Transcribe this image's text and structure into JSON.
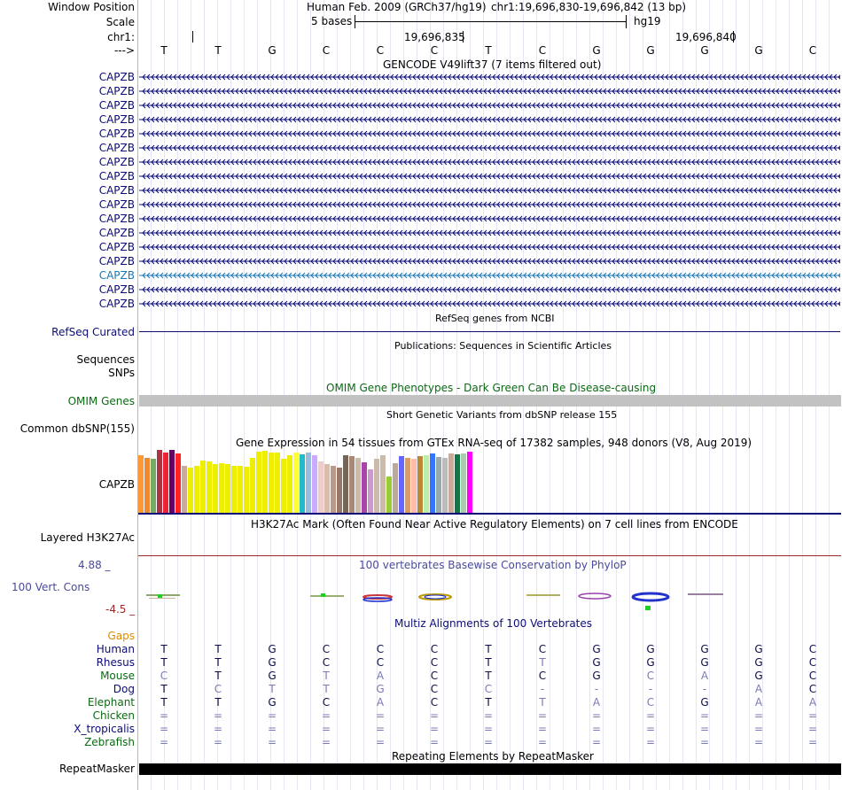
{
  "header": {
    "window_position_label": "Window Position",
    "assembly": "Human Feb. 2009 (GRCh37/hg19)",
    "position": "chr1:19,696,830-19,696,842 (13 bp)",
    "scale_label": "Scale",
    "scale_bar": "5 bases",
    "scale_db": "hg19",
    "chrom_label": "chr1:",
    "pos_tick_1": "19,696,835",
    "pos_tick_2": "19,696,840",
    "strand_label": "--->",
    "bases": [
      "T",
      "T",
      "G",
      "C",
      "C",
      "C",
      "T",
      "C",
      "G",
      "G",
      "G",
      "G",
      "C"
    ]
  },
  "gencode": {
    "title": "GENCODE V49lift37 (7 items filtered out)",
    "items": [
      "CAPZB",
      "CAPZB",
      "CAPZB",
      "CAPZB",
      "CAPZB",
      "CAPZB",
      "CAPZB",
      "CAPZB",
      "CAPZB",
      "CAPZB",
      "CAPZB",
      "CAPZB",
      "CAPZB",
      "CAPZB",
      "CAPZB",
      "CAPZB",
      "CAPZB"
    ],
    "colors": [
      "#0c0c78",
      "#0c0c78",
      "#0c0c78",
      "#0c0c78",
      "#0c0c78",
      "#0c0c78",
      "#0c0c78",
      "#0c0c78",
      "#0c0c78",
      "#0c0c78",
      "#0c0c78",
      "#0c0c78",
      "#0c0c78",
      "#0c0c78",
      "#1a78b4",
      "#0c0c78",
      "#0c0c78"
    ]
  },
  "refseq": {
    "title": "RefSeq genes from NCBI",
    "label": "RefSeq Curated",
    "color": "#0c0c78"
  },
  "publications": {
    "title": "Publications: Sequences in Scientific Articles",
    "label1": "Sequences",
    "label2": "SNPs"
  },
  "omim": {
    "title": "OMIM Gene Phenotypes - Dark Green Can Be Disease-causing",
    "label": "OMIM Genes",
    "color": "#0b6a12"
  },
  "dbsnp": {
    "title": "Short Genetic Variants from dbSNP release 155",
    "label": "Common dbSNP(155)"
  },
  "gtex": {
    "title": "Gene Expression in 54 tissues from GTEx RNA-seq of 17382 samples, 948 donors (V8, Aug 2019)",
    "label": "CAPZB",
    "values": [
      66,
      63,
      62,
      72,
      69,
      72,
      68,
      54,
      52,
      54,
      60,
      59,
      56,
      57,
      56,
      54,
      54,
      53,
      63,
      70,
      71,
      69,
      69,
      62,
      66,
      69,
      67,
      69,
      66,
      59,
      56,
      54,
      52,
      66,
      65,
      63,
      58,
      50,
      62,
      66,
      42,
      57,
      65,
      63,
      62,
      65,
      66,
      68,
      64,
      63,
      68,
      67,
      68,
      70
    ],
    "colors": [
      "#ff9933",
      "#ee8833",
      "#77aa66",
      "#aa3344",
      "#ee2233",
      "#660066",
      "#ff2222",
      "#ccaa99",
      "#eeee00",
      "#eeee00",
      "#eeee00",
      "#eeee00",
      "#eeee00",
      "#eeee00",
      "#eeee00",
      "#eeee00",
      "#eeee00",
      "#eeee00",
      "#eeee00",
      "#eeee00",
      "#eeee00",
      "#eeee00",
      "#eeee00",
      "#eeee00",
      "#eeee00",
      "#ffff33",
      "#22bbcc",
      "#99bbdd",
      "#ccaaff",
      "#eecccc",
      "#ddbbaa",
      "#bb9988",
      "#997766",
      "#776655",
      "#aa8877",
      "#ccbbaa",
      "#aa44aa",
      "#cc99cc",
      "#ccbbaa",
      "#ccbbaa",
      "#99cc33",
      "#bbaa99",
      "#6666ff",
      "#dd9966",
      "#ffbbaa",
      "#bb8833",
      "#bbeeaa",
      "#3377ff",
      "#99aaaa",
      "#bbbbbb",
      "#ccaa99",
      "#117744",
      "#aaccaa",
      "#ff00ff"
    ]
  },
  "h3k27ac": {
    "title": "H3K27Ac Mark (Often Found Near Active Regulatory Elements) on 7 cell lines from ENCODE",
    "label": "Layered H3K27Ac"
  },
  "cons": {
    "title": "100 vertebrates Basewise Conservation by PhyloP",
    "label": "100 Vert. Cons",
    "ymax": "4.88 _",
    "ymin": "-4.5 _"
  },
  "multiz": {
    "title": "Multiz Alignments of 100 Vertebrates",
    "gaps_label": "Gaps",
    "species": [
      {
        "name": "Human",
        "color": "#0c0c78",
        "bases": [
          "T",
          "T",
          "G",
          "C",
          "C",
          "C",
          "T",
          "C",
          "G",
          "G",
          "G",
          "G",
          "C"
        ],
        "match": [
          1,
          1,
          1,
          1,
          1,
          1,
          1,
          1,
          1,
          1,
          1,
          1,
          1
        ]
      },
      {
        "name": "Rhesus",
        "color": "#0c0c78",
        "bases": [
          "T",
          "T",
          "G",
          "C",
          "C",
          "C",
          "T",
          "T",
          "G",
          "G",
          "G",
          "G",
          "C"
        ],
        "match": [
          1,
          1,
          1,
          1,
          1,
          1,
          1,
          0,
          1,
          1,
          1,
          1,
          1
        ]
      },
      {
        "name": "Mouse",
        "color": "#0b6a12",
        "bases": [
          "C",
          "T",
          "G",
          "T",
          "A",
          "C",
          "T",
          "C",
          "G",
          "C",
          "A",
          "G",
          "C"
        ],
        "match": [
          0,
          1,
          1,
          0,
          0,
          1,
          1,
          1,
          1,
          0,
          0,
          1,
          1
        ]
      },
      {
        "name": "Dog",
        "color": "#0c0c78",
        "bases": [
          "T",
          "C",
          "T",
          "T",
          "G",
          "C",
          "C",
          "-",
          "-",
          "-",
          "-",
          "A",
          "C"
        ],
        "match": [
          1,
          0,
          0,
          0,
          0,
          1,
          0,
          0,
          0,
          0,
          0,
          0,
          1
        ]
      },
      {
        "name": "Elephant",
        "color": "#0b6a12",
        "bases": [
          "T",
          "T",
          "G",
          "C",
          "A",
          "C",
          "T",
          "T",
          "A",
          "C",
          "G",
          "A",
          "A"
        ],
        "match": [
          1,
          1,
          1,
          1,
          0,
          1,
          1,
          0,
          0,
          0,
          1,
          0,
          0
        ]
      },
      {
        "name": "Chicken",
        "color": "#0b6a12",
        "bases": [
          "=",
          "=",
          "=",
          "=",
          "=",
          "=",
          "=",
          "=",
          "=",
          "=",
          "=",
          "=",
          "="
        ],
        "match": [
          0,
          0,
          0,
          0,
          0,
          0,
          0,
          0,
          0,
          0,
          0,
          0,
          0
        ]
      },
      {
        "name": "X_tropicalis",
        "color": "#0c0c78",
        "bases": [
          "=",
          "=",
          "=",
          "=",
          "=",
          "=",
          "=",
          "=",
          "=",
          "=",
          "=",
          "=",
          "="
        ],
        "match": [
          0,
          0,
          0,
          0,
          0,
          0,
          0,
          0,
          0,
          0,
          0,
          0,
          0
        ]
      },
      {
        "name": "Zebrafish",
        "color": "#0b6a12",
        "bases": [
          "=",
          "=",
          "=",
          "=",
          "=",
          "=",
          "=",
          "=",
          "=",
          "=",
          "=",
          "=",
          "="
        ],
        "match": [
          0,
          0,
          0,
          0,
          0,
          0,
          0,
          0,
          0,
          0,
          0,
          0,
          0
        ]
      }
    ]
  },
  "repeatmasker": {
    "title": "Repeating Elements by RepeatMasker",
    "label": "RepeatMasker"
  },
  "colors": {
    "navy": "#0c0c78",
    "green": "#0b6a12",
    "label_gaps": "#e08a00",
    "cons_label": "#4a4a9c",
    "cons_min": "#9c2a2a",
    "divider": "#0c0c78"
  }
}
